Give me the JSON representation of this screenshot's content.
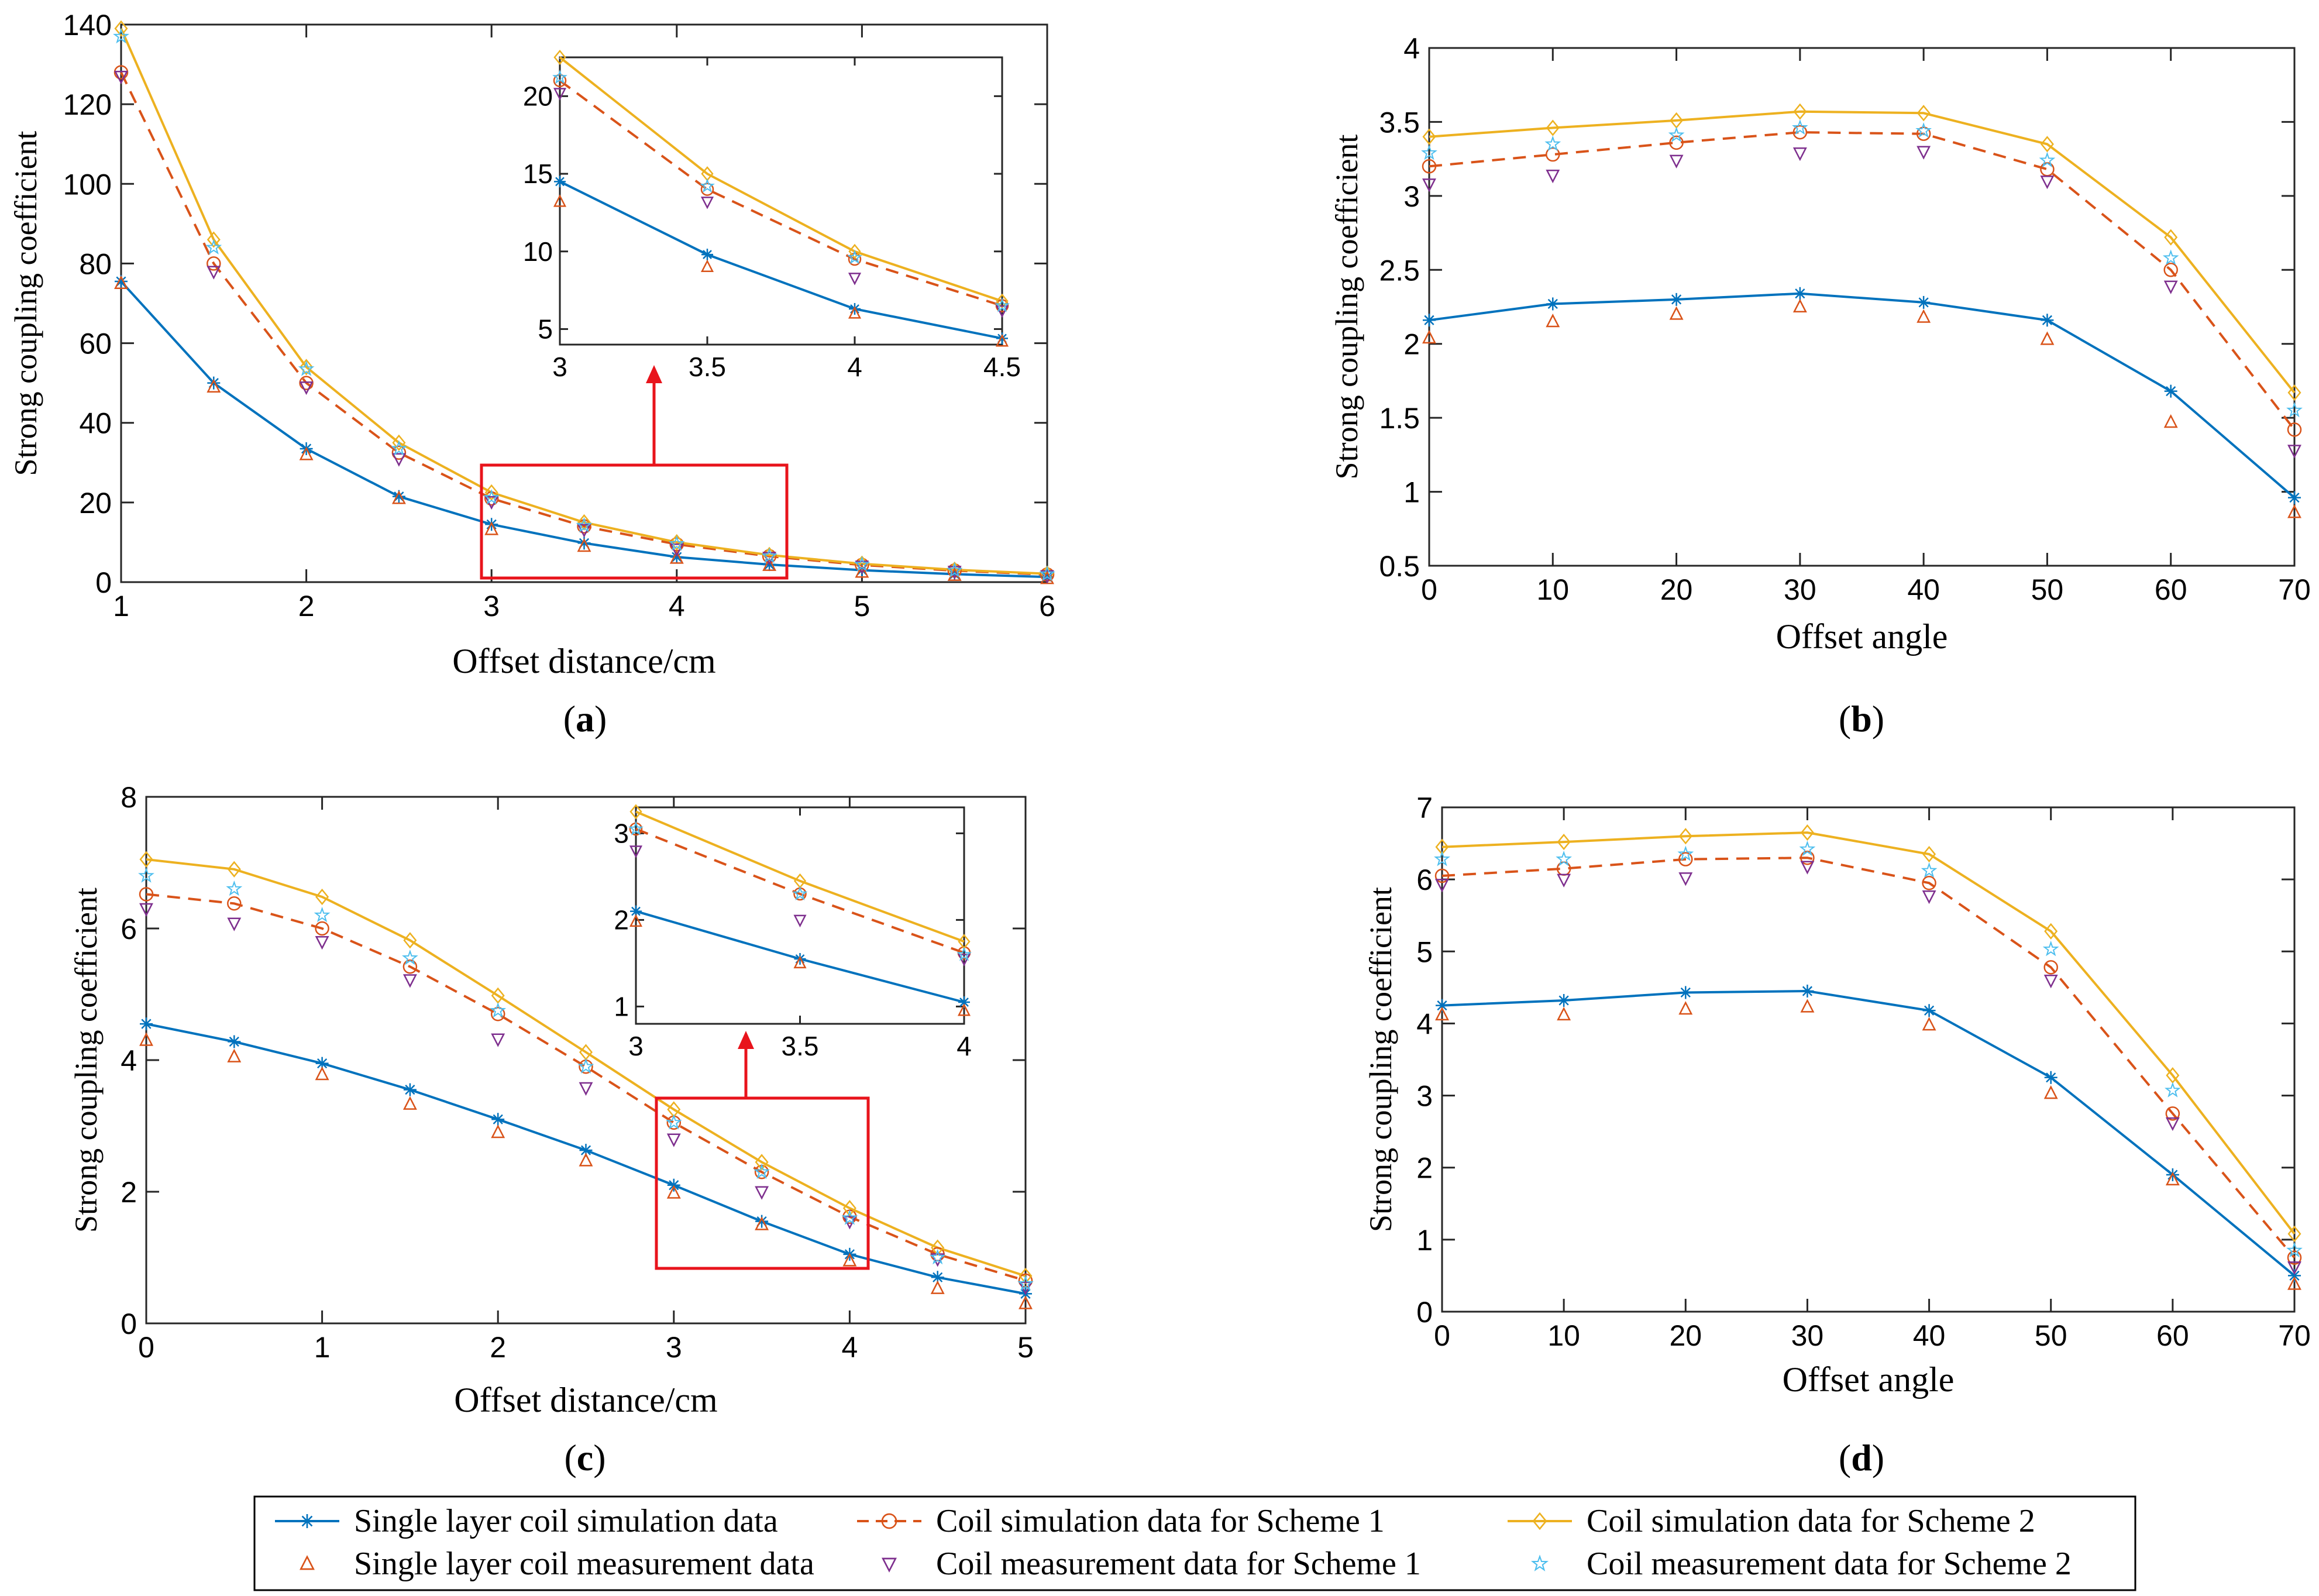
{
  "legend": {
    "entries": [
      {
        "label": "Single layer coil simulation data",
        "key": "single_sim",
        "color": "#0072BD",
        "marker": "asterisk",
        "line": "solid"
      },
      {
        "label": "Coil simulation data for Scheme 1",
        "key": "s1_sim",
        "color": "#D95319",
        "marker": "circle",
        "line": "dashed"
      },
      {
        "label": "Coil simulation data for Scheme 2",
        "key": "s2_sim",
        "color": "#EDB120",
        "marker": "diamond",
        "line": "solid"
      },
      {
        "label": "Single layer coil measurement data",
        "key": "single_meas",
        "color": "#D95319",
        "marker": "triangle-up",
        "line": "none"
      },
      {
        "label": "Coil measurement data for Scheme 1",
        "key": "s1_meas",
        "color": "#7E2F8E",
        "marker": "triangle-down",
        "line": "none"
      },
      {
        "label": "Coil measurement data for Scheme 2",
        "key": "s2_meas",
        "color": "#4DBEEE",
        "marker": "pentagram",
        "line": "none"
      }
    ]
  },
  "chart_data": [
    {
      "id": "a",
      "panel_label": "a",
      "type": "line",
      "xlabel": "Offset distance/cm",
      "ylabel": "Strong coupling coefficient",
      "xlim": [
        1,
        6
      ],
      "ylim": [
        0,
        140
      ],
      "xticks": [
        "1",
        "2",
        "3",
        "4",
        "5",
        "6"
      ],
      "yticks": [
        "0",
        "20",
        "40",
        "60",
        "80",
        "100",
        "120",
        "140"
      ],
      "x": [
        1,
        1.5,
        2,
        2.5,
        3,
        3.5,
        4,
        4.5,
        5,
        5.5,
        6
      ],
      "series": [
        {
          "key": "single_sim",
          "values": [
            75.5,
            50,
            33.5,
            21.5,
            14.5,
            9.8,
            6.3,
            4.4,
            3.0,
            2.0,
            1.3
          ]
        },
        {
          "key": "s1_sim",
          "values": [
            128,
            80,
            50,
            32.5,
            21,
            14,
            9.5,
            6.5,
            4.3,
            2.9,
            1.9
          ]
        },
        {
          "key": "s2_sim",
          "values": [
            139,
            86,
            54,
            35,
            22.5,
            15,
            10,
            6.8,
            4.6,
            3.1,
            2.1
          ]
        },
        {
          "key": "single_meas",
          "values": [
            75,
            49,
            32,
            21,
            13.2,
            9.0,
            6.0,
            4.2,
            2.5,
            1.7,
            0.9
          ]
        },
        {
          "key": "s1_meas",
          "values": [
            127,
            78,
            49,
            31,
            20.2,
            13.2,
            8.3,
            6.2,
            4.0,
            2.7,
            1.6
          ]
        },
        {
          "key": "s2_meas",
          "values": [
            137,
            84,
            53.5,
            33.5,
            21.2,
            14.2,
            9.6,
            6.5,
            4.4,
            2.9,
            2.0
          ]
        }
      ],
      "inset": {
        "xlim": [
          3,
          4.5
        ],
        "ylim": [
          4,
          22.5
        ],
        "xticks": [
          "3",
          "3.5",
          "4",
          "4.5"
        ],
        "yticks": [
          "5",
          "10",
          "15",
          "20"
        ],
        "x": [
          3,
          3.5,
          4,
          4.5
        ],
        "series": [
          {
            "key": "single_sim",
            "values": [
              14.5,
              9.8,
              6.3,
              4.4
            ]
          },
          {
            "key": "s1_sim",
            "values": [
              21,
              14,
              9.5,
              6.5
            ]
          },
          {
            "key": "s2_sim",
            "values": [
              22.5,
              15,
              10,
              6.8
            ]
          },
          {
            "key": "single_meas",
            "values": [
              13.2,
              9.0,
              6.0,
              4.2
            ]
          },
          {
            "key": "s1_meas",
            "values": [
              20.2,
              13.2,
              8.3,
              6.2
            ]
          },
          {
            "key": "s2_meas",
            "values": [
              21.2,
              14.2,
              9.6,
              6.5
            ]
          }
        ]
      }
    },
    {
      "id": "b",
      "panel_label": "b",
      "type": "line",
      "xlabel": "Offset angle",
      "ylabel": "Strong coupling coefficient",
      "xlim": [
        0,
        70
      ],
      "ylim": [
        0.5,
        4
      ],
      "xticks": [
        "0",
        "10",
        "20",
        "30",
        "40",
        "50",
        "60",
        "70"
      ],
      "yticks": [
        "0.5",
        "1",
        "1.5",
        "2",
        "2.5",
        "3",
        "3.5",
        "4"
      ],
      "x": [
        0,
        10,
        20,
        30,
        40,
        50,
        60,
        70
      ],
      "series": [
        {
          "key": "single_sim",
          "values": [
            2.16,
            2.27,
            2.3,
            2.34,
            2.28,
            2.16,
            1.68,
            0.96
          ]
        },
        {
          "key": "s1_sim",
          "values": [
            3.2,
            3.28,
            3.36,
            3.43,
            3.42,
            3.18,
            2.5,
            1.42
          ]
        },
        {
          "key": "s2_sim",
          "values": [
            3.4,
            3.46,
            3.51,
            3.57,
            3.56,
            3.35,
            2.72,
            1.67
          ]
        },
        {
          "key": "single_meas",
          "values": [
            2.04,
            2.15,
            2.2,
            2.25,
            2.18,
            2.03,
            1.47,
            0.86
          ]
        },
        {
          "key": "s1_meas",
          "values": [
            3.08,
            3.14,
            3.24,
            3.29,
            3.3,
            3.1,
            2.39,
            1.28
          ]
        },
        {
          "key": "s2_meas",
          "values": [
            3.29,
            3.35,
            3.41,
            3.46,
            3.44,
            3.24,
            2.58,
            1.55
          ]
        }
      ]
    },
    {
      "id": "c",
      "panel_label": "c",
      "type": "line",
      "xlabel": "Offset distance/cm",
      "ylabel": "Strong coupling coefficient",
      "xlim": [
        0,
        5
      ],
      "ylim": [
        0,
        8
      ],
      "xticks": [
        "0",
        "1",
        "2",
        "3",
        "4",
        "5"
      ],
      "yticks": [
        "0",
        "2",
        "4",
        "6",
        "8"
      ],
      "x": [
        0,
        0.5,
        1,
        1.5,
        2,
        2.5,
        3,
        3.5,
        4,
        4.5,
        5
      ],
      "series": [
        {
          "key": "single_sim",
          "values": [
            4.55,
            4.28,
            3.95,
            3.55,
            3.1,
            2.63,
            2.1,
            1.55,
            1.05,
            0.7,
            0.45
          ]
        },
        {
          "key": "s1_sim",
          "values": [
            6.52,
            6.38,
            6.0,
            5.42,
            4.7,
            3.9,
            3.05,
            2.3,
            1.62,
            1.05,
            0.65
          ]
        },
        {
          "key": "s2_sim",
          "values": [
            7.05,
            6.9,
            6.48,
            5.82,
            4.98,
            4.12,
            3.25,
            2.45,
            1.75,
            1.15,
            0.72
          ]
        },
        {
          "key": "single_meas",
          "values": [
            4.3,
            4.05,
            3.78,
            3.33,
            2.9,
            2.47,
            1.98,
            1.5,
            0.95,
            0.53,
            0.3
          ]
        },
        {
          "key": "s1_meas",
          "values": [
            6.3,
            6.08,
            5.8,
            5.22,
            4.32,
            3.58,
            2.8,
            2.0,
            1.55,
            0.98,
            0.55
          ]
        },
        {
          "key": "s2_meas",
          "values": [
            6.8,
            6.6,
            6.2,
            5.55,
            4.75,
            3.9,
            3.05,
            2.3,
            1.6,
            1.0,
            0.6
          ]
        }
      ],
      "inset": {
        "xlim": [
          3,
          4
        ],
        "ylim": [
          0.8,
          3.3
        ],
        "xticks": [
          "3",
          "3.5",
          "4"
        ],
        "yticks": [
          "1",
          "2",
          "3"
        ],
        "x": [
          3,
          3.5,
          4
        ],
        "series": [
          {
            "key": "single_sim",
            "values": [
              2.1,
              1.55,
              1.05
            ]
          },
          {
            "key": "s1_sim",
            "values": [
              3.05,
              2.3,
              1.62
            ]
          },
          {
            "key": "s2_sim",
            "values": [
              3.25,
              2.45,
              1.75
            ]
          },
          {
            "key": "single_meas",
            "values": [
              1.98,
              1.5,
              0.95
            ]
          },
          {
            "key": "s1_meas",
            "values": [
              2.8,
              2.0,
              1.55
            ]
          },
          {
            "key": "s2_meas",
            "values": [
              3.05,
              2.3,
              1.6
            ]
          }
        ]
      }
    },
    {
      "id": "d",
      "panel_label": "d",
      "type": "line",
      "xlabel": "Offset angle",
      "ylabel": "Strong coupling coefficient",
      "xlim": [
        0,
        70
      ],
      "ylim": [
        0,
        7
      ],
      "xticks": [
        "0",
        "10",
        "20",
        "30",
        "40",
        "50",
        "60",
        "70"
      ],
      "yticks": [
        "0",
        "1",
        "2",
        "3",
        "4",
        "5",
        "6",
        "7"
      ],
      "x": [
        0,
        10,
        20,
        30,
        40,
        50,
        60,
        70
      ],
      "series": [
        {
          "key": "single_sim",
          "values": [
            4.25,
            4.32,
            4.43,
            4.45,
            4.18,
            3.25,
            1.9,
            0.5
          ]
        },
        {
          "key": "s1_sim",
          "values": [
            6.05,
            6.15,
            6.28,
            6.3,
            5.95,
            4.78,
            2.75,
            0.75
          ]
        },
        {
          "key": "s2_sim",
          "values": [
            6.45,
            6.52,
            6.6,
            6.65,
            6.35,
            5.28,
            3.28,
            1.08
          ]
        },
        {
          "key": "single_meas",
          "values": [
            4.12,
            4.12,
            4.2,
            4.23,
            3.98,
            3.03,
            1.83,
            0.38
          ]
        },
        {
          "key": "s1_meas",
          "values": [
            5.93,
            6.0,
            6.02,
            6.18,
            5.77,
            4.6,
            2.62,
            0.62
          ]
        },
        {
          "key": "s2_meas",
          "values": [
            6.28,
            6.28,
            6.35,
            6.42,
            6.12,
            5.03,
            3.07,
            0.85
          ]
        }
      ]
    }
  ]
}
